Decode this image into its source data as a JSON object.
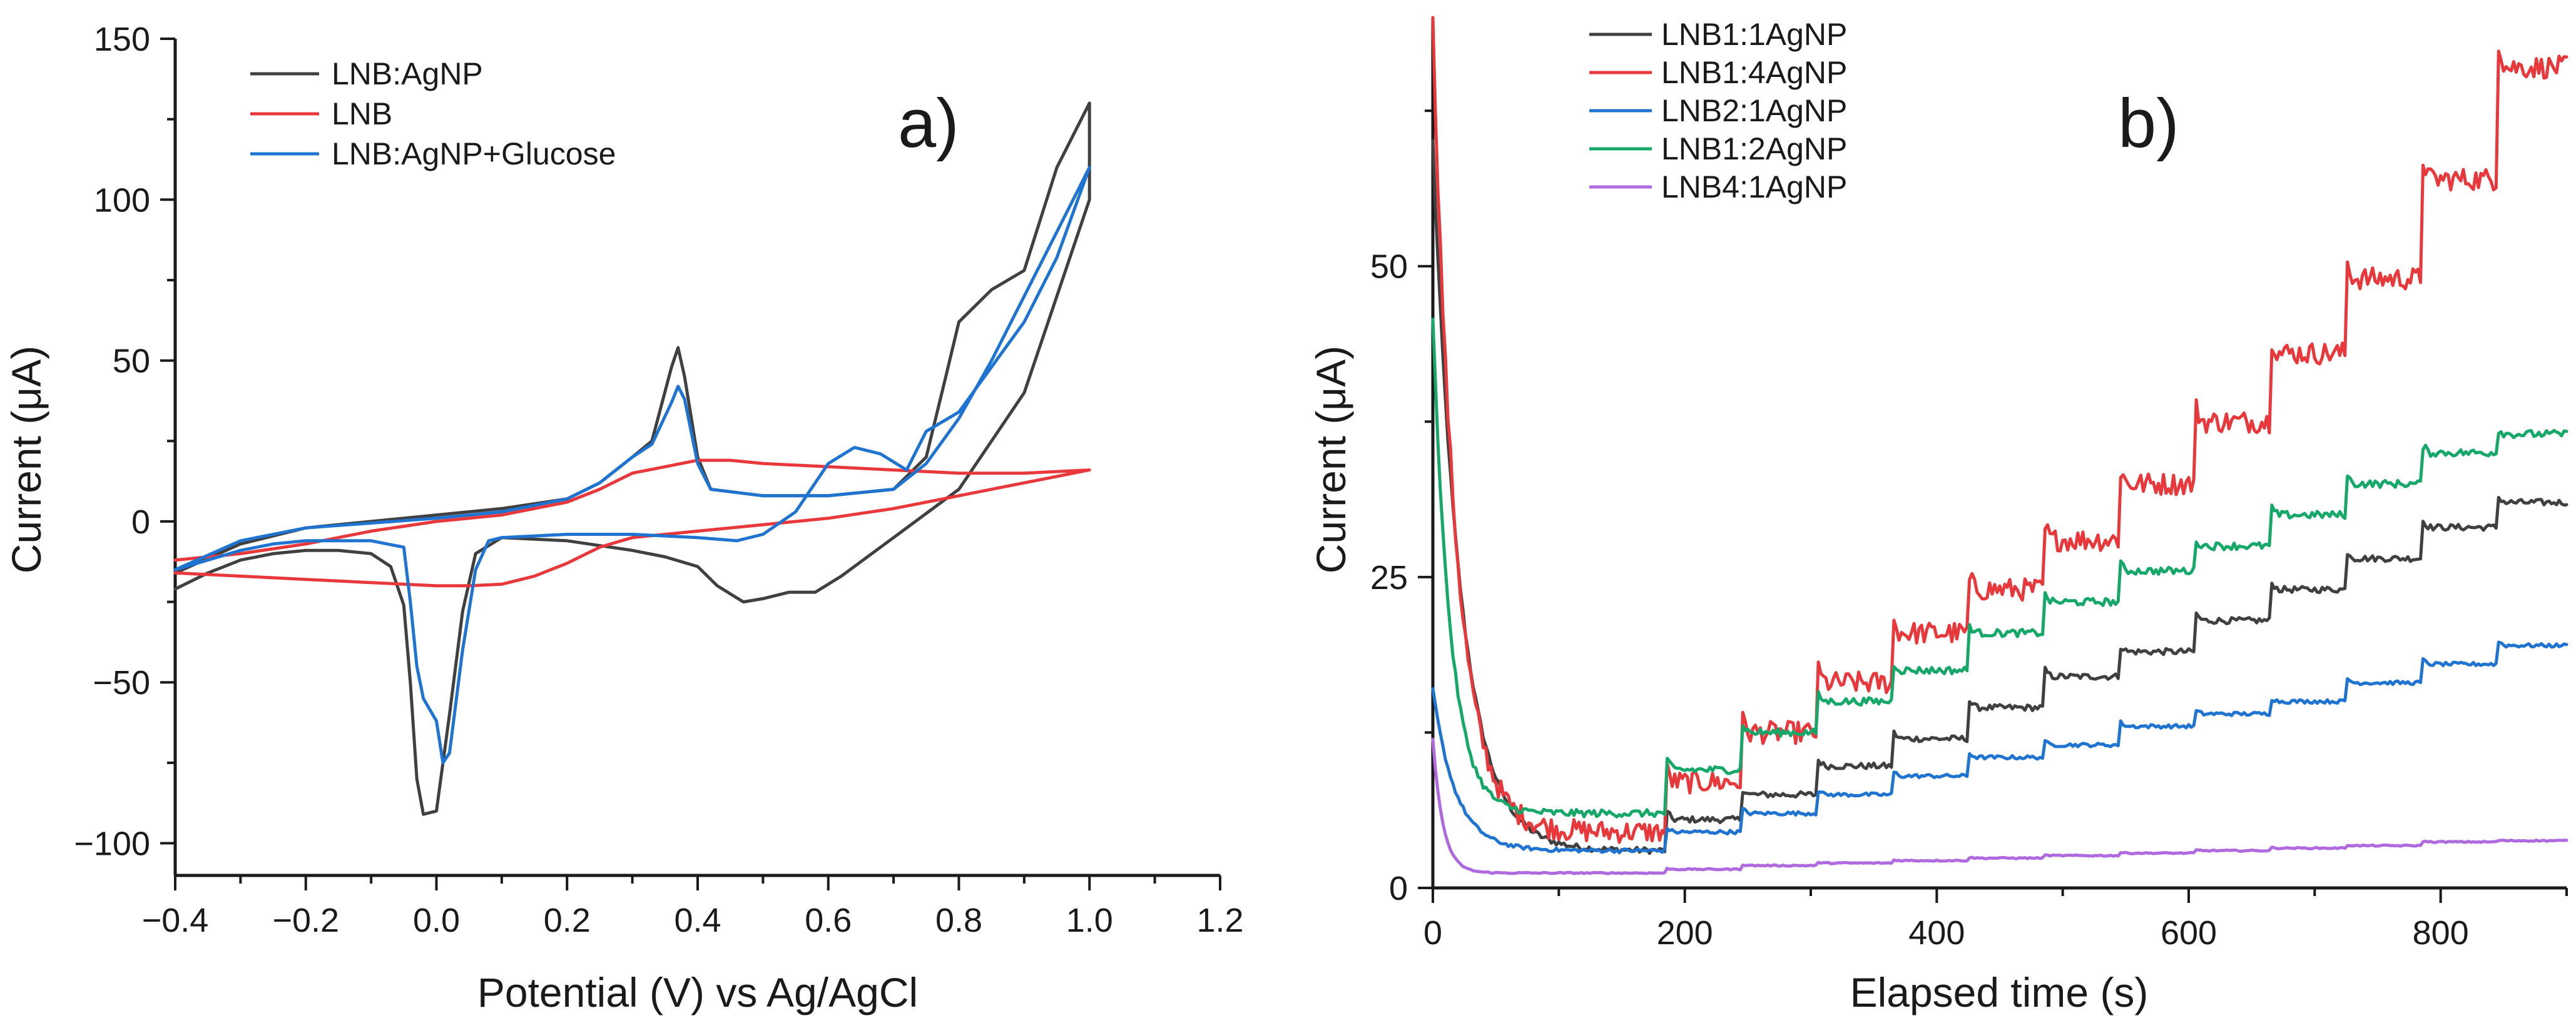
{
  "chart_data": [
    {
      "id": "a",
      "type": "line",
      "panel_label": "a)",
      "xlabel": "Potential (V) vs Ag/AgCl",
      "ylabel": "Current (μA)",
      "xlim": [
        -0.4,
        1.2
      ],
      "ylim": [
        -110,
        150
      ],
      "xticks": [
        -0.4,
        -0.2,
        0.0,
        0.2,
        0.4,
        0.6,
        0.8,
        1.0,
        1.2
      ],
      "xtick_labels": [
        "−0.4",
        "−0.2",
        "0.0",
        "0.2",
        "0.4",
        "0.6",
        "0.8",
        "1.0",
        "1.2"
      ],
      "yticks": [
        -100,
        -50,
        0,
        50,
        100,
        150
      ],
      "ytick_labels": [
        "−100",
        "−50",
        "0",
        "50",
        "100",
        "150"
      ],
      "legend_position": "top-left",
      "series": [
        {
          "name": "LNB:AgNP",
          "color": "#404040",
          "points": [
            [
              -0.4,
              -21
            ],
            [
              -0.35,
              -16
            ],
            [
              -0.3,
              -12
            ],
            [
              -0.25,
              -10
            ],
            [
              -0.2,
              -9
            ],
            [
              -0.15,
              -9
            ],
            [
              -0.1,
              -10
            ],
            [
              -0.07,
              -14
            ],
            [
              -0.05,
              -26
            ],
            [
              -0.04,
              -50
            ],
            [
              -0.03,
              -80
            ],
            [
              -0.02,
              -91
            ],
            [
              0.0,
              -90
            ],
            [
              0.02,
              -60
            ],
            [
              0.04,
              -28
            ],
            [
              0.06,
              -10
            ],
            [
              0.1,
              -5
            ],
            [
              0.2,
              -6
            ],
            [
              0.3,
              -9
            ],
            [
              0.35,
              -11
            ],
            [
              0.4,
              -14
            ],
            [
              0.43,
              -20
            ],
            [
              0.47,
              -25
            ],
            [
              0.5,
              -24
            ],
            [
              0.54,
              -22
            ],
            [
              0.58,
              -22
            ],
            [
              0.62,
              -17
            ],
            [
              0.7,
              -5
            ],
            [
              0.8,
              10
            ],
            [
              0.9,
              40
            ],
            [
              0.95,
              70
            ],
            [
              1.0,
              100
            ],
            [
              1.0,
              130
            ],
            [
              0.95,
              110
            ],
            [
              0.9,
              78
            ],
            [
              0.85,
              72
            ],
            [
              0.8,
              62
            ],
            [
              0.78,
              45
            ],
            [
              0.75,
              20
            ],
            [
              0.7,
              10
            ],
            [
              0.6,
              8
            ],
            [
              0.5,
              8
            ],
            [
              0.42,
              10
            ],
            [
              0.4,
              20
            ],
            [
              0.38,
              45
            ],
            [
              0.37,
              54
            ],
            [
              0.36,
              48
            ],
            [
              0.33,
              25
            ],
            [
              0.3,
              20
            ],
            [
              0.25,
              12
            ],
            [
              0.2,
              7
            ],
            [
              0.1,
              4
            ],
            [
              0.0,
              2
            ],
            [
              -0.2,
              -2
            ],
            [
              -0.3,
              -7
            ],
            [
              -0.4,
              -16
            ]
          ]
        },
        {
          "name": "LNB",
          "color": "#e8383b",
          "points": [
            [
              -0.4,
              -16
            ],
            [
              -0.3,
              -17
            ],
            [
              -0.2,
              -18
            ],
            [
              -0.1,
              -19
            ],
            [
              0.0,
              -20
            ],
            [
              0.05,
              -20
            ],
            [
              0.1,
              -19.5
            ],
            [
              0.15,
              -17
            ],
            [
              0.2,
              -13
            ],
            [
              0.25,
              -8
            ],
            [
              0.3,
              -5
            ],
            [
              0.4,
              -3
            ],
            [
              0.5,
              -1
            ],
            [
              0.6,
              1
            ],
            [
              0.7,
              4
            ],
            [
              0.8,
              8
            ],
            [
              0.9,
              12
            ],
            [
              1.0,
              16
            ],
            [
              0.9,
              15
            ],
            [
              0.8,
              15
            ],
            [
              0.7,
              16
            ],
            [
              0.6,
              17
            ],
            [
              0.5,
              18
            ],
            [
              0.45,
              19
            ],
            [
              0.4,
              19
            ],
            [
              0.35,
              17
            ],
            [
              0.3,
              15
            ],
            [
              0.25,
              10
            ],
            [
              0.2,
              6
            ],
            [
              0.1,
              2
            ],
            [
              0.0,
              0
            ],
            [
              -0.1,
              -3
            ],
            [
              -0.2,
              -7
            ],
            [
              -0.3,
              -10
            ],
            [
              -0.4,
              -12
            ]
          ]
        },
        {
          "name": "LNB:AgNP+Glucose",
          "color": "#1f74d1",
          "points": [
            [
              -0.4,
              -15
            ],
            [
              -0.35,
              -12
            ],
            [
              -0.3,
              -9
            ],
            [
              -0.25,
              -7
            ],
            [
              -0.2,
              -6
            ],
            [
              -0.1,
              -6
            ],
            [
              -0.05,
              -8
            ],
            [
              -0.04,
              -25
            ],
            [
              -0.03,
              -45
            ],
            [
              -0.02,
              -55
            ],
            [
              0.0,
              -62
            ],
            [
              0.01,
              -75
            ],
            [
              0.02,
              -72
            ],
            [
              0.04,
              -40
            ],
            [
              0.06,
              -15
            ],
            [
              0.08,
              -6
            ],
            [
              0.1,
              -5
            ],
            [
              0.2,
              -4
            ],
            [
              0.3,
              -4
            ],
            [
              0.4,
              -5
            ],
            [
              0.46,
              -6
            ],
            [
              0.5,
              -4
            ],
            [
              0.55,
              3
            ],
            [
              0.6,
              18
            ],
            [
              0.64,
              23
            ],
            [
              0.68,
              21
            ],
            [
              0.72,
              16
            ],
            [
              0.75,
              28
            ],
            [
              0.8,
              34
            ],
            [
              0.85,
              48
            ],
            [
              0.9,
              62
            ],
            [
              0.95,
              82
            ],
            [
              1.0,
              110
            ],
            [
              0.95,
              90
            ],
            [
              0.9,
              70
            ],
            [
              0.85,
              50
            ],
            [
              0.8,
              32
            ],
            [
              0.75,
              18
            ],
            [
              0.7,
              10
            ],
            [
              0.6,
              8
            ],
            [
              0.5,
              8
            ],
            [
              0.42,
              10
            ],
            [
              0.4,
              18
            ],
            [
              0.38,
              38
            ],
            [
              0.37,
              42
            ],
            [
              0.36,
              37
            ],
            [
              0.33,
              24
            ],
            [
              0.3,
              20
            ],
            [
              0.25,
              12
            ],
            [
              0.2,
              7
            ],
            [
              0.1,
              3
            ],
            [
              0.0,
              1
            ],
            [
              -0.2,
              -2
            ],
            [
              -0.3,
              -6
            ],
            [
              -0.4,
              -15
            ]
          ]
        }
      ]
    },
    {
      "id": "b",
      "type": "line",
      "panel_label": "b)",
      "xlabel": "Elapsed time (s)",
      "ylabel": "Current (μA)",
      "xlim": [
        0,
        900
      ],
      "ylim": [
        0,
        70
      ],
      "xticks": [
        0,
        200,
        400,
        600,
        800
      ],
      "xtick_labels": [
        "0",
        "200",
        "400",
        "600",
        "800"
      ],
      "yticks": [
        0,
        25,
        50
      ],
      "ytick_labels": [
        "0",
        "25",
        "50"
      ],
      "legend_position": "top-left",
      "step_times": [
        185,
        245,
        305,
        365,
        425,
        485,
        545,
        605,
        665,
        725,
        785,
        845
      ],
      "series": [
        {
          "name": "LNB1:1AgNP",
          "color": "#404040",
          "spike": 60,
          "decay_plateau": 3,
          "decay_tau": 22,
          "levels": [
            3,
            5.5,
            7.5,
            9.8,
            12,
            14.5,
            17,
            19,
            21.5,
            24,
            26.5,
            29,
            31
          ],
          "noise": 0.25
        },
        {
          "name": "LNB1:4AgNP",
          "color": "#e8383b",
          "spike": 70,
          "decay_plateau": 4.5,
          "decay_tau": 18,
          "levels": [
            4.5,
            8.5,
            12.5,
            16.5,
            20.5,
            24,
            28,
            32.5,
            37.5,
            43,
            49,
            57,
            66
          ],
          "noise": 0.9
        },
        {
          "name": "LNB2:1AgNP",
          "color": "#1f74d1",
          "spike": 16,
          "decay_plateau": 3,
          "decay_tau": 18,
          "levels": [
            3,
            4.5,
            6,
            7.5,
            9,
            10.5,
            11.5,
            13,
            14,
            15,
            16.5,
            18,
            19.5
          ],
          "noise": 0.15
        },
        {
          "name": "LNB1:2AgNP",
          "color": "#16a868",
          "spike": 46,
          "decay_plateau": 6,
          "decay_tau": 14,
          "levels": [
            6,
            9.5,
            12.5,
            15,
            17.5,
            20.5,
            23,
            25.5,
            27.5,
            30,
            32.5,
            35,
            36.5
          ],
          "noise": 0.3
        },
        {
          "name": "LNB4:1AgNP",
          "color": "#b06ae0",
          "spike": 12,
          "decay_plateau": 1.2,
          "decay_tau": 8,
          "levels": [
            1.2,
            1.5,
            1.8,
            2.0,
            2.2,
            2.4,
            2.6,
            2.8,
            3.0,
            3.2,
            3.4,
            3.7,
            3.8
          ],
          "noise": 0.05
        }
      ]
    }
  ]
}
